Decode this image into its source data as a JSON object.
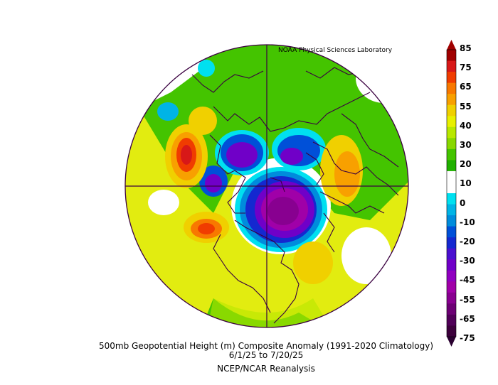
{
  "credit": "NOAA Physical Sciences Laboratory",
  "caption": {
    "line1": "500mb Geopotential Height (m) Composite Anomaly (1991-2020 Climatology)",
    "line2": "6/1/25  to 7/20/25",
    "line3": "NCEP/NCAR Reanalysis"
  },
  "colorbar": {
    "labels": [
      "85",
      "75",
      "65",
      "55",
      "40",
      "30",
      "20",
      "10",
      "0",
      "-10",
      "-20",
      "-30",
      "-45",
      "-55",
      "-65",
      "-75"
    ],
    "colors": [
      "#a00000",
      "#d81818",
      "#f03c00",
      "#f87800",
      "#f8a000",
      "#f0d000",
      "#e8f000",
      "#b8e800",
      "#88d800",
      "#44c400",
      "#20b000",
      "#ffffff",
      "#ffffff",
      "#00e0f0",
      "#00b4e6",
      "#008cdc",
      "#0050d8",
      "#1428d0",
      "#4a10d0",
      "#7000c8",
      "#9000c0",
      "#a000a8",
      "#880090",
      "#6c0074",
      "#500058",
      "#3c003c"
    ],
    "arrow_top_color": "#a00000",
    "arrow_bottom_color": "#2a0030"
  },
  "colors": {
    "map_outline": "#3a0040",
    "background": "#ffffff"
  }
}
